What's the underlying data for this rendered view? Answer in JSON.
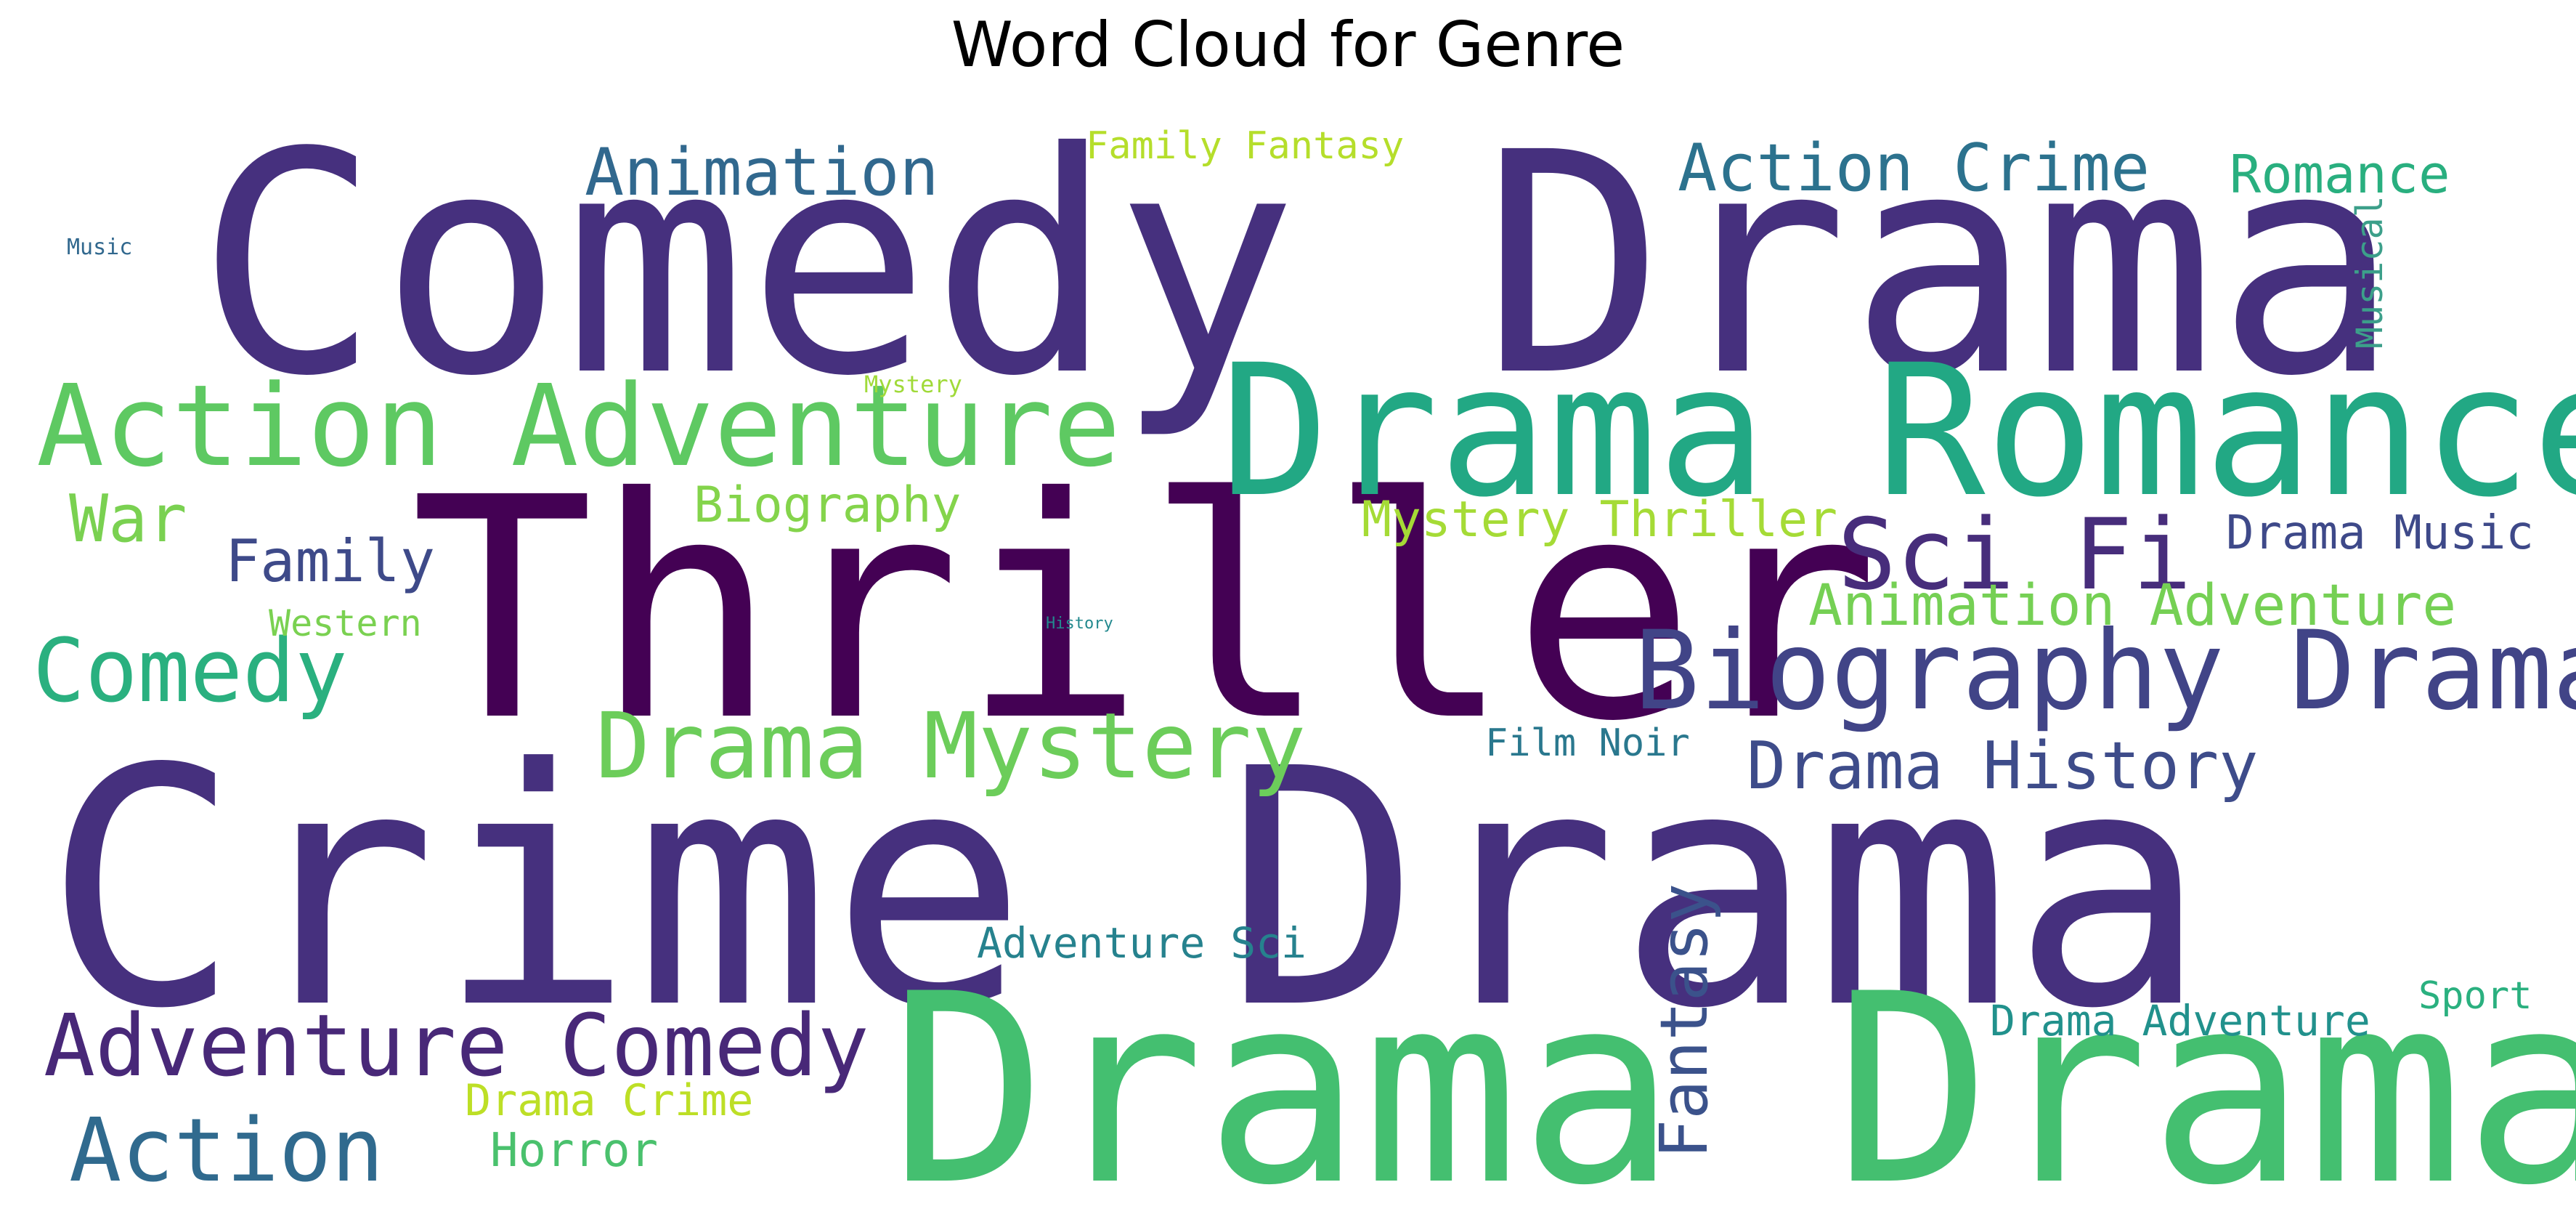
{
  "chart_data": {
    "type": "wordcloud",
    "title": "Word Cloud for Genre",
    "background": "#ffffff",
    "colormap": "viridis",
    "grid": false,
    "words": [
      {
        "text": "Comedy Drama",
        "color": "#46307e"
      },
      {
        "text": "Crime Drama",
        "color": "#46307e"
      },
      {
        "text": "Thriller",
        "color": "#440154"
      },
      {
        "text": "Drama Drama",
        "color": "#44bf70"
      },
      {
        "text": "Drama Romance",
        "color": "#22a884"
      },
      {
        "text": "Action Adventure",
        "color": "#5ec962"
      },
      {
        "text": "Biography Drama",
        "color": "#414487"
      },
      {
        "text": "Drama Mystery",
        "color": "#6ccd5a"
      },
      {
        "text": "Adventure Comedy",
        "color": "#482878"
      },
      {
        "text": "Sci Fi",
        "color": "#472d7b"
      },
      {
        "text": "Comedy",
        "color": "#2ab07f"
      },
      {
        "text": "Action",
        "color": "#306a8e"
      },
      {
        "text": "Animation",
        "color": "#31688e"
      },
      {
        "text": "Action Crime",
        "color": "#2c728e"
      },
      {
        "text": "Drama History",
        "color": "#3e4c8a"
      },
      {
        "text": "Fantasy",
        "color": "#3b528b"
      },
      {
        "text": "Romance",
        "color": "#29af7f"
      },
      {
        "text": "Animation Adventure",
        "color": "#75d054"
      },
      {
        "text": "Mystery Thriller",
        "color": "#a5db36"
      },
      {
        "text": "War",
        "color": "#7ad151"
      },
      {
        "text": "Family",
        "color": "#3e4a89"
      },
      {
        "text": "Biography",
        "color": "#84d44b"
      },
      {
        "text": "Drama Music",
        "color": "#3e4989"
      },
      {
        "text": "Drama Crime",
        "color": "#bddf26"
      },
      {
        "text": "Horror",
        "color": "#4ac16d"
      },
      {
        "text": "Family Fantasy",
        "color": "#b5de2b"
      },
      {
        "text": "Adventure Sci",
        "color": "#26828e"
      },
      {
        "text": "Drama Adventure",
        "color": "#21918c"
      },
      {
        "text": "Film Noir",
        "color": "#2a788e"
      },
      {
        "text": "Western",
        "color": "#7ad151"
      },
      {
        "text": "Sport",
        "color": "#2ab07f"
      },
      {
        "text": "Musical",
        "color": "#3c9f8a"
      },
      {
        "text": "Mystery",
        "color": "#a0da39"
      },
      {
        "text": "Music",
        "color": "#31688e"
      },
      {
        "text": "History",
        "color": "#23898e"
      }
    ]
  }
}
